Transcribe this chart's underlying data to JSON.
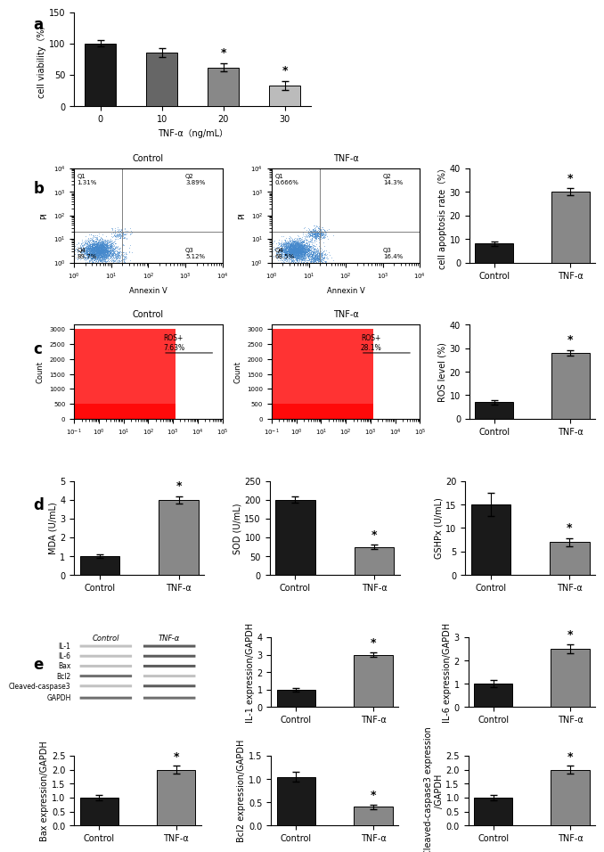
{
  "panel_a": {
    "categories": [
      "0",
      "10",
      "20",
      "30"
    ],
    "values": [
      100,
      85,
      62,
      33
    ],
    "errors": [
      5,
      7,
      6,
      7
    ],
    "colors": [
      "#1a1a1a",
      "#666666",
      "#888888",
      "#bbbbbb"
    ],
    "sig": [
      false,
      false,
      true,
      true
    ],
    "ylabel": "cell viability（%）",
    "xlabel": "TNF-α（ng/mL）",
    "ylim": [
      0,
      150
    ],
    "yticks": [
      0,
      50,
      100,
      150
    ]
  },
  "panel_b_bar": {
    "categories": [
      "Control",
      "TNF-α"
    ],
    "values": [
      8,
      30
    ],
    "errors": [
      0.8,
      1.5
    ],
    "colors": [
      "#1a1a1a",
      "#888888"
    ],
    "sig": [
      false,
      true
    ],
    "ylabel": "cell apoptosis rate（%）",
    "ylim": [
      0,
      40
    ],
    "yticks": [
      0,
      10,
      20,
      30,
      40
    ]
  },
  "panel_c_bar": {
    "categories": [
      "Control",
      "TNF-α"
    ],
    "values": [
      7,
      28
    ],
    "errors": [
      0.8,
      1.2
    ],
    "colors": [
      "#1a1a1a",
      "#888888"
    ],
    "sig": [
      false,
      true
    ],
    "ylabel": "ROS level (%)",
    "ylim": [
      0,
      40
    ],
    "yticks": [
      0,
      10,
      20,
      30,
      40
    ]
  },
  "panel_d_mda": {
    "categories": [
      "Control",
      "TNF-α"
    ],
    "values": [
      1.0,
      4.0
    ],
    "errors": [
      0.1,
      0.2
    ],
    "colors": [
      "#1a1a1a",
      "#888888"
    ],
    "sig": [
      false,
      true
    ],
    "ylabel": "MDA (U/mL)",
    "ylim": [
      0,
      5
    ],
    "yticks": [
      0,
      1,
      2,
      3,
      4,
      5
    ]
  },
  "panel_d_sod": {
    "categories": [
      "Control",
      "TNF-α"
    ],
    "values": [
      200,
      75
    ],
    "errors": [
      8,
      5
    ],
    "colors": [
      "#1a1a1a",
      "#888888"
    ],
    "sig": [
      false,
      true
    ],
    "ylabel": "SOD (U/mL)",
    "ylim": [
      0,
      250
    ],
    "yticks": [
      0,
      50,
      100,
      150,
      200,
      250
    ]
  },
  "panel_d_gsh": {
    "categories": [
      "Control",
      "TNF-α"
    ],
    "values": [
      15,
      7
    ],
    "errors": [
      2.5,
      0.8
    ],
    "colors": [
      "#1a1a1a",
      "#888888"
    ],
    "sig": [
      false,
      true
    ],
    "ylabel": "GSHPx (U/mL)",
    "ylim": [
      0,
      20
    ],
    "yticks": [
      0,
      5,
      10,
      15,
      20
    ]
  },
  "panel_e_il1": {
    "categories": [
      "Control",
      "TNF-α"
    ],
    "values": [
      1.0,
      3.0
    ],
    "errors": [
      0.1,
      0.15
    ],
    "colors": [
      "#1a1a1a",
      "#888888"
    ],
    "sig": [
      false,
      true
    ],
    "ylabel": "IL-1 expression/GAPDH",
    "ylim": [
      0,
      4
    ],
    "yticks": [
      0,
      1,
      2,
      3,
      4
    ]
  },
  "panel_e_il6": {
    "categories": [
      "Control",
      "TNF-α"
    ],
    "values": [
      1.0,
      2.5
    ],
    "errors": [
      0.15,
      0.2
    ],
    "colors": [
      "#1a1a1a",
      "#888888"
    ],
    "sig": [
      false,
      true
    ],
    "ylabel": "IL-6 expression/GAPDH",
    "ylim": [
      0,
      3
    ],
    "yticks": [
      0,
      1,
      2,
      3
    ]
  },
  "panel_e_bax": {
    "categories": [
      "Control",
      "TNF-α"
    ],
    "values": [
      1.0,
      2.0
    ],
    "errors": [
      0.1,
      0.15
    ],
    "colors": [
      "#1a1a1a",
      "#888888"
    ],
    "sig": [
      false,
      true
    ],
    "ylabel": "Bax expression/GAPDH",
    "ylim": [
      0,
      2.5
    ],
    "yticks": [
      0,
      0.5,
      1.0,
      1.5,
      2.0,
      2.5
    ]
  },
  "panel_e_bcl2": {
    "categories": [
      "Control",
      "TNF-α"
    ],
    "values": [
      1.05,
      0.4
    ],
    "errors": [
      0.1,
      0.05
    ],
    "colors": [
      "#1a1a1a",
      "#888888"
    ],
    "sig": [
      false,
      true
    ],
    "ylabel": "Bcl2 expression/GAPDH",
    "ylim": [
      0,
      1.5
    ],
    "yticks": [
      0.0,
      0.5,
      1.0,
      1.5
    ]
  },
  "panel_e_casp3": {
    "categories": [
      "Control",
      "TNF-α"
    ],
    "values": [
      1.0,
      2.0
    ],
    "errors": [
      0.1,
      0.15
    ],
    "colors": [
      "#1a1a1a",
      "#888888"
    ],
    "sig": [
      false,
      true
    ],
    "ylabel": "Cleaved-caspase3 expression\n/GAPDH",
    "ylim": [
      0,
      2.5
    ],
    "yticks": [
      0,
      0.5,
      1.0,
      1.5,
      2.0,
      2.5
    ]
  },
  "wb_labels": [
    "IL-1",
    "IL-6",
    "Bax",
    "Bcl2",
    "Cleaved-caspase3",
    "GAPDH"
  ],
  "wb_columns": [
    "Control",
    "TNF-α"
  ],
  "bg_color": "#ffffff",
  "bar_width": 0.5,
  "font_size": 7,
  "label_fontsize": 8,
  "title_fontsize": 10
}
